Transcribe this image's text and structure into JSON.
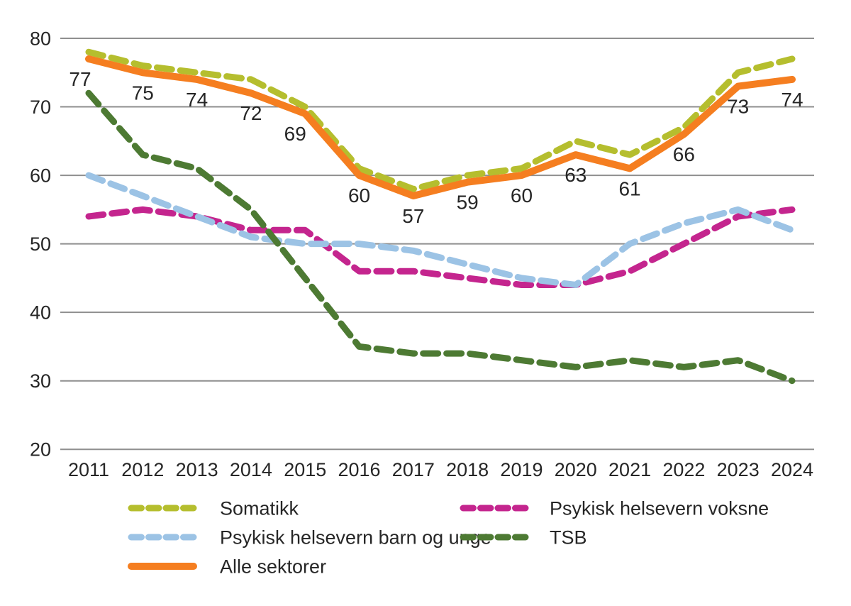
{
  "figure": {
    "background": "#ffffff"
  },
  "chart_data": {
    "type": "line",
    "title": "",
    "xlabel": "",
    "ylabel": "",
    "x": [
      2011,
      2012,
      2013,
      2014,
      2015,
      2016,
      2017,
      2018,
      2019,
      2020,
      2021,
      2022,
      2023,
      2024
    ],
    "series": [
      {
        "name": "Somatikk",
        "color": "#b5be2e",
        "style": "dashed",
        "values": [
          78,
          76,
          75,
          74,
          70,
          61,
          58,
          60,
          61,
          65,
          63,
          67,
          75,
          77
        ]
      },
      {
        "name": "Psykisk helsevern voksne",
        "color": "#c4258e",
        "style": "dashed",
        "values": [
          54,
          55,
          54,
          52,
          52,
          46,
          46,
          45,
          44,
          44,
          46,
          50,
          54,
          55
        ]
      },
      {
        "name": "Psykisk helsevern barn og unge",
        "color": "#9cc3e5",
        "style": "dashed",
        "values": [
          60,
          57,
          54,
          51,
          50,
          50,
          49,
          47,
          45,
          44,
          50,
          53,
          55,
          52
        ]
      },
      {
        "name": "TSB",
        "color": "#4d7a33",
        "style": "dashed",
        "values": [
          72,
          63,
          61,
          55,
          45,
          35,
          34,
          34,
          33,
          32,
          33,
          32,
          33,
          30
        ]
      },
      {
        "name": "Alle sektorer",
        "color": "#f57e20",
        "style": "solid",
        "values": [
          77,
          75,
          74,
          72,
          69,
          60,
          57,
          59,
          60,
          63,
          61,
          66,
          73,
          74
        ],
        "data_labels": [
          "77",
          "75",
          "74",
          "72",
          "69",
          "60",
          "57",
          "59",
          "60",
          "63",
          "61",
          "66",
          "73",
          "74"
        ]
      }
    ],
    "ylim": [
      20,
      80
    ],
    "yticks": [
      "20",
      "30",
      "40",
      "50",
      "60",
      "70",
      "80"
    ],
    "xticks": [
      "2011",
      "2012",
      "2013",
      "2014",
      "2015",
      "2016",
      "2017",
      "2018",
      "2019",
      "2020",
      "2021",
      "2022",
      "2023",
      "2024"
    ],
    "grid": "horizontal",
    "gridline_color": "#8f8f8f",
    "text_color": "#262626",
    "legend_position": "bottom",
    "legend_columns": [
      [
        "Somatikk",
        "Psykisk helsevern barn og unge",
        "Alle sektorer"
      ],
      [
        "Psykisk helsevern voksne",
        "TSB"
      ]
    ]
  }
}
